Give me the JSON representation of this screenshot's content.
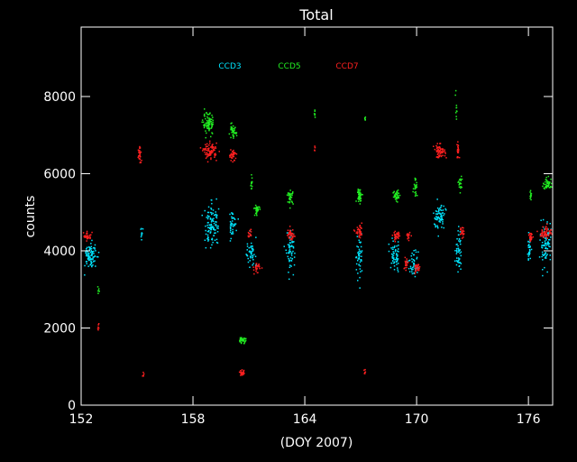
{
  "chart_data": {
    "type": "scatter",
    "title": "Total",
    "xlabel": "(DOY 2007)",
    "ylabel": "counts",
    "xlim": [
      152,
      177.3
    ],
    "ylim": [
      0,
      9800
    ],
    "x_ticks": [
      152,
      158,
      164,
      170,
      176
    ],
    "y_ticks": [
      0,
      2000,
      4000,
      6000,
      8000
    ],
    "legend_position": "top-center",
    "series": [
      {
        "name": "CCD3",
        "color": "#00e5ff",
        "clusters": [
          {
            "x": 152.5,
            "y": 3900,
            "x_spread": 0.35,
            "y_spread": 300,
            "n": 90
          },
          {
            "x": 155.2,
            "y": 4500,
            "x_spread": 0.05,
            "y_spread": 250,
            "n": 10
          },
          {
            "x": 159.0,
            "y": 4700,
            "x_spread": 0.4,
            "y_spread": 500,
            "n": 110
          },
          {
            "x": 160.1,
            "y": 4700,
            "x_spread": 0.2,
            "y_spread": 350,
            "n": 40
          },
          {
            "x": 161.1,
            "y": 4000,
            "x_spread": 0.25,
            "y_spread": 350,
            "n": 50
          },
          {
            "x": 163.2,
            "y": 4000,
            "x_spread": 0.2,
            "y_spread": 450,
            "n": 60
          },
          {
            "x": 166.9,
            "y": 3900,
            "x_spread": 0.15,
            "y_spread": 450,
            "n": 50
          },
          {
            "x": 168.8,
            "y": 3900,
            "x_spread": 0.25,
            "y_spread": 400,
            "n": 60
          },
          {
            "x": 169.8,
            "y": 3700,
            "x_spread": 0.25,
            "y_spread": 350,
            "n": 50
          },
          {
            "x": 171.2,
            "y": 4900,
            "x_spread": 0.3,
            "y_spread": 400,
            "n": 70
          },
          {
            "x": 172.2,
            "y": 4000,
            "x_spread": 0.15,
            "y_spread": 500,
            "n": 50
          },
          {
            "x": 176.0,
            "y": 4000,
            "x_spread": 0.1,
            "y_spread": 300,
            "n": 30
          },
          {
            "x": 176.9,
            "y": 4200,
            "x_spread": 0.3,
            "y_spread": 500,
            "n": 80
          }
        ]
      },
      {
        "name": "CCD5",
        "color": "#22ee22",
        "clusters": [
          {
            "x": 152.9,
            "y": 3000,
            "x_spread": 0.05,
            "y_spread": 100,
            "n": 6
          },
          {
            "x": 158.8,
            "y": 7300,
            "x_spread": 0.3,
            "y_spread": 250,
            "n": 80
          },
          {
            "x": 160.1,
            "y": 7100,
            "x_spread": 0.2,
            "y_spread": 150,
            "n": 40
          },
          {
            "x": 160.6,
            "y": 1700,
            "x_spread": 0.2,
            "y_spread": 60,
            "n": 35
          },
          {
            "x": 161.1,
            "y": 5700,
            "x_spread": 0.05,
            "y_spread": 250,
            "n": 12
          },
          {
            "x": 161.4,
            "y": 5100,
            "x_spread": 0.15,
            "y_spread": 120,
            "n": 30
          },
          {
            "x": 163.2,
            "y": 5400,
            "x_spread": 0.15,
            "y_spread": 150,
            "n": 35
          },
          {
            "x": 164.5,
            "y": 7600,
            "x_spread": 0.03,
            "y_spread": 150,
            "n": 6
          },
          {
            "x": 166.9,
            "y": 5450,
            "x_spread": 0.15,
            "y_spread": 150,
            "n": 40
          },
          {
            "x": 167.2,
            "y": 7400,
            "x_spread": 0.03,
            "y_spread": 150,
            "n": 6
          },
          {
            "x": 168.9,
            "y": 5450,
            "x_spread": 0.2,
            "y_spread": 150,
            "n": 40
          },
          {
            "x": 169.9,
            "y": 5700,
            "x_spread": 0.1,
            "y_spread": 250,
            "n": 25
          },
          {
            "x": 172.1,
            "y": 7700,
            "x_spread": 0.05,
            "y_spread": 300,
            "n": 10
          },
          {
            "x": 172.3,
            "y": 5800,
            "x_spread": 0.1,
            "y_spread": 150,
            "n": 20
          },
          {
            "x": 176.1,
            "y": 5450,
            "x_spread": 0.05,
            "y_spread": 150,
            "n": 12
          },
          {
            "x": 177.0,
            "y": 5750,
            "x_spread": 0.25,
            "y_spread": 130,
            "n": 45
          }
        ]
      },
      {
        "name": "CCD7",
        "color": "#ff2020",
        "clusters": [
          {
            "x": 152.3,
            "y": 4400,
            "x_spread": 0.2,
            "y_spread": 100,
            "n": 35
          },
          {
            "x": 152.9,
            "y": 2000,
            "x_spread": 0.05,
            "y_spread": 150,
            "n": 6
          },
          {
            "x": 155.1,
            "y": 6500,
            "x_spread": 0.1,
            "y_spread": 250,
            "n": 30
          },
          {
            "x": 155.3,
            "y": 800,
            "x_spread": 0.05,
            "y_spread": 150,
            "n": 6
          },
          {
            "x": 158.9,
            "y": 6600,
            "x_spread": 0.35,
            "y_spread": 180,
            "n": 80
          },
          {
            "x": 160.1,
            "y": 6500,
            "x_spread": 0.2,
            "y_spread": 130,
            "n": 35
          },
          {
            "x": 160.6,
            "y": 850,
            "x_spread": 0.15,
            "y_spread": 60,
            "n": 25
          },
          {
            "x": 161.0,
            "y": 4450,
            "x_spread": 0.1,
            "y_spread": 120,
            "n": 15
          },
          {
            "x": 161.4,
            "y": 3550,
            "x_spread": 0.15,
            "y_spread": 120,
            "n": 30
          },
          {
            "x": 163.2,
            "y": 4450,
            "x_spread": 0.2,
            "y_spread": 130,
            "n": 35
          },
          {
            "x": 164.5,
            "y": 6600,
            "x_spread": 0.03,
            "y_spread": 200,
            "n": 5
          },
          {
            "x": 166.9,
            "y": 4500,
            "x_spread": 0.2,
            "y_spread": 130,
            "n": 35
          },
          {
            "x": 167.2,
            "y": 850,
            "x_spread": 0.05,
            "y_spread": 80,
            "n": 6
          },
          {
            "x": 168.9,
            "y": 4400,
            "x_spread": 0.2,
            "y_spread": 130,
            "n": 35
          },
          {
            "x": 169.4,
            "y": 3700,
            "x_spread": 0.1,
            "y_spread": 150,
            "n": 20
          },
          {
            "x": 169.5,
            "y": 4400,
            "x_spread": 0.1,
            "y_spread": 120,
            "n": 20
          },
          {
            "x": 170.0,
            "y": 3550,
            "x_spread": 0.15,
            "y_spread": 120,
            "n": 25
          },
          {
            "x": 171.2,
            "y": 6600,
            "x_spread": 0.3,
            "y_spread": 150,
            "n": 60
          },
          {
            "x": 172.2,
            "y": 6600,
            "x_spread": 0.1,
            "y_spread": 200,
            "n": 25
          },
          {
            "x": 172.4,
            "y": 4500,
            "x_spread": 0.1,
            "y_spread": 130,
            "n": 20
          },
          {
            "x": 176.1,
            "y": 4400,
            "x_spread": 0.1,
            "y_spread": 130,
            "n": 20
          },
          {
            "x": 176.9,
            "y": 4500,
            "x_spread": 0.3,
            "y_spread": 150,
            "n": 60
          }
        ]
      }
    ]
  }
}
